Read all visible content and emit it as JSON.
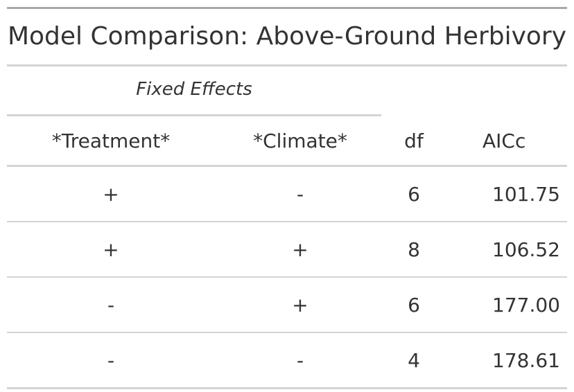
{
  "title": "Model Comparison: Above-Ground Herbivory",
  "spanner": "Fixed Effects",
  "columns": {
    "treatment": "*Treatment*",
    "climate": "*Climate*",
    "df": "df",
    "aicc": "AICc"
  },
  "rows": [
    {
      "treatment": "+",
      "climate": "-",
      "df": "6",
      "aicc": "101.75"
    },
    {
      "treatment": "+",
      "climate": "+",
      "df": "8",
      "aicc": "106.52"
    },
    {
      "treatment": "-",
      "climate": "+",
      "df": "6",
      "aicc": "177.00"
    },
    {
      "treatment": "-",
      "climate": "-",
      "df": "4",
      "aicc": "178.61"
    }
  ]
}
